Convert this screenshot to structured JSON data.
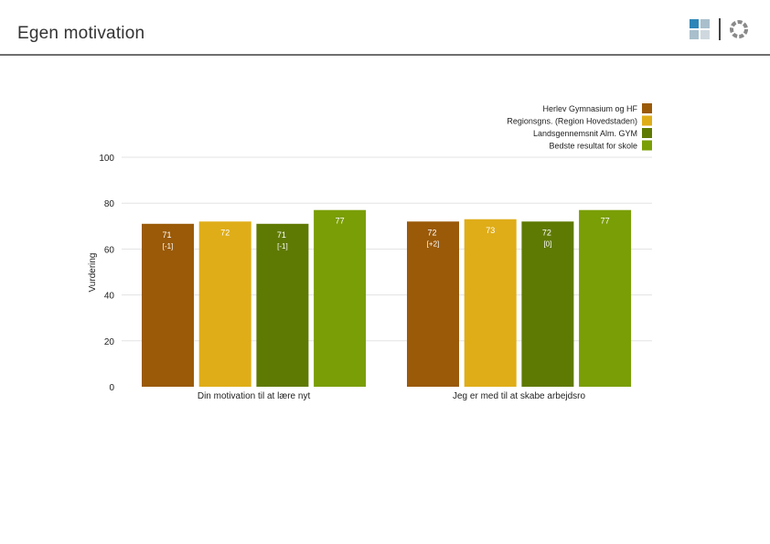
{
  "page": {
    "title": "Egen motivation"
  },
  "logo": {
    "icon": "municipality-logo-icon"
  },
  "chart_data": {
    "type": "bar",
    "title": "",
    "xlabel": "",
    "ylabel": "Vurdering",
    "ylim": [
      0,
      100
    ],
    "yticks": [
      0,
      20,
      40,
      60,
      80,
      100
    ],
    "grid": true,
    "legend_position": "top-right",
    "categories": [
      "Din motivation til at lære nyt",
      "Jeg er med til at skabe arbejdsro"
    ],
    "series": [
      {
        "name": "Herlev Gymnasium og HF",
        "color": "#9a5a08",
        "values": [
          71,
          72
        ],
        "diffs": [
          "[-1]",
          "[+2]"
        ]
      },
      {
        "name": "Regionsgns. (Region Hovedstaden)",
        "color": "#dfad18",
        "values": [
          72,
          73
        ],
        "diffs": [
          null,
          null
        ]
      },
      {
        "name": "Landsgennemsnit Alm. GYM",
        "color": "#5f7a03",
        "values": [
          71,
          72
        ],
        "diffs": [
          "[-1]",
          "[0]"
        ]
      },
      {
        "name": "Bedste resultat for skole",
        "color": "#7a9e05",
        "values": [
          77,
          77
        ],
        "diffs": [
          null,
          null
        ]
      }
    ]
  }
}
